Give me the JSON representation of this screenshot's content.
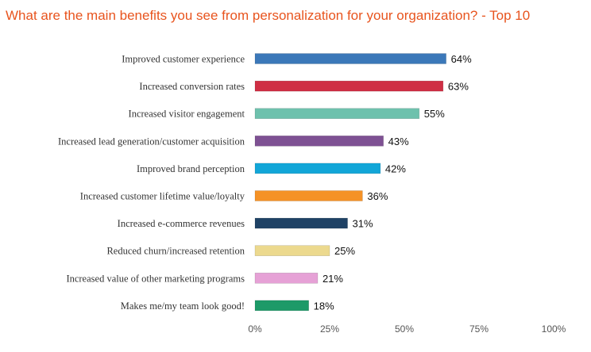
{
  "chart_data": {
    "type": "bar",
    "orientation": "horizontal",
    "title": "What are the main benefits you see from personalization for your organization? - Top 10",
    "categories": [
      "Improved customer experience",
      "Increased conversion rates",
      "Increased visitor engagement",
      "Increased lead generation/customer acquisition",
      "Improved brand perception",
      "Increased customer lifetime value/loyalty",
      "Increased e-commerce revenues",
      "Reduced churn/increased retention",
      "Increased value of other marketing programs",
      "Makes me/my team look good!"
    ],
    "values": [
      64,
      63,
      55,
      43,
      42,
      36,
      31,
      25,
      21,
      18
    ],
    "value_labels": [
      "64%",
      "63%",
      "55%",
      "43%",
      "42%",
      "36%",
      "31%",
      "25%",
      "21%",
      "18%"
    ],
    "colors": [
      "#3b78b9",
      "#cf2f44",
      "#6ec1ad",
      "#7e5193",
      "#12a6d8",
      "#f59226",
      "#1f4265",
      "#ecd98e",
      "#e6a1d6",
      "#1d9a68"
    ],
    "xlim": [
      0,
      100
    ],
    "xticks": [
      0,
      25,
      50,
      75,
      100
    ],
    "xtick_labels": [
      "0%",
      "25%",
      "50%",
      "75%",
      "100%"
    ],
    "xlabel": "",
    "ylabel": "",
    "grid": false,
    "legend": "none"
  }
}
